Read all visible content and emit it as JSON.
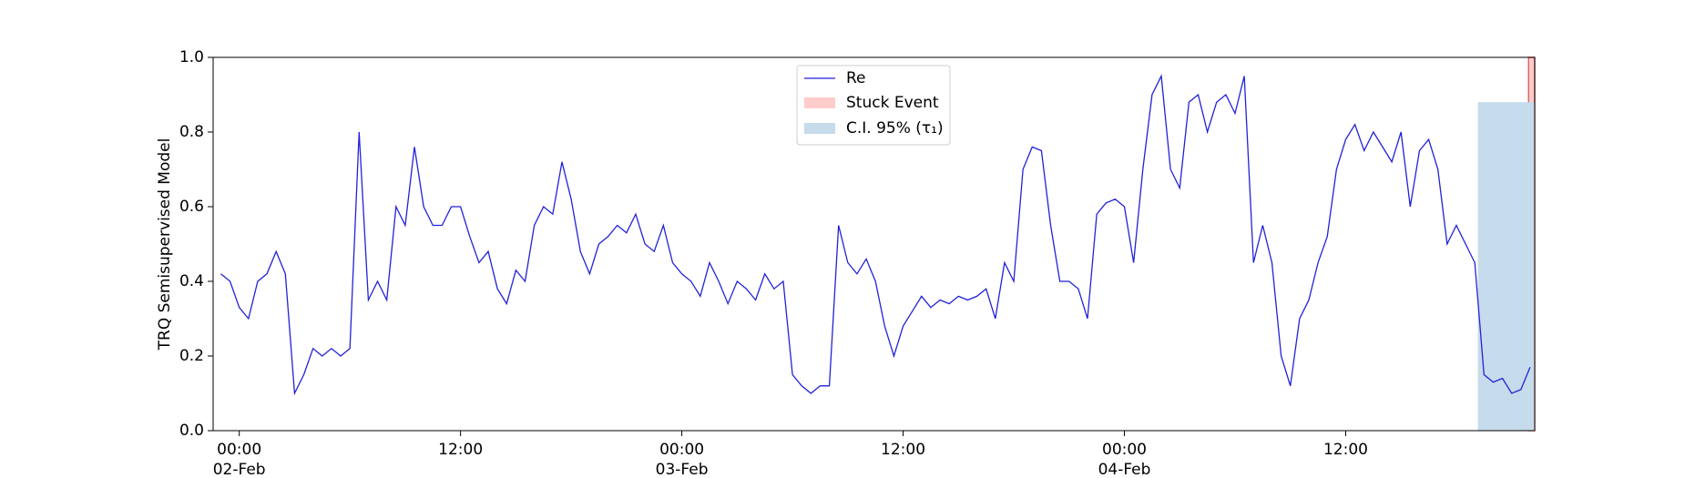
{
  "chart_data": {
    "type": "line",
    "ylabel": "TRQ Semisupervised Model",
    "x": [
      "1900-02-01T23:00",
      "1900-02-01T23:30",
      "1900-02-02T00:00",
      "1900-02-02T00:30",
      "1900-02-02T01:00",
      "1900-02-02T01:30",
      "1900-02-02T02:00",
      "1900-02-02T02:30",
      "1900-02-02T03:00",
      "1900-02-02T03:30",
      "1900-02-02T04:00",
      "1900-02-02T04:30",
      "1900-02-02T05:00",
      "1900-02-02T05:30",
      "1900-02-02T06:00",
      "1900-02-02T06:30",
      "1900-02-02T07:00",
      "1900-02-02T07:30",
      "1900-02-02T08:00",
      "1900-02-02T08:30",
      "1900-02-02T09:00",
      "1900-02-02T09:30",
      "1900-02-02T10:00",
      "1900-02-02T10:30",
      "1900-02-02T11:00",
      "1900-02-02T11:30",
      "1900-02-02T12:00",
      "1900-02-02T12:30",
      "1900-02-02T13:00",
      "1900-02-02T13:30",
      "1900-02-02T14:00",
      "1900-02-02T14:30",
      "1900-02-02T15:00",
      "1900-02-02T15:30",
      "1900-02-02T16:00",
      "1900-02-02T16:30",
      "1900-02-02T17:00",
      "1900-02-02T17:30",
      "1900-02-02T18:00",
      "1900-02-02T18:30",
      "1900-02-02T19:00",
      "1900-02-02T19:30",
      "1900-02-02T20:00",
      "1900-02-02T20:30",
      "1900-02-02T21:00",
      "1900-02-02T21:30",
      "1900-02-02T22:00",
      "1900-02-02T22:30",
      "1900-02-02T23:00",
      "1900-02-02T23:30",
      "1900-02-03T00:00",
      "1900-02-03T00:30",
      "1900-02-03T01:00",
      "1900-02-03T01:30",
      "1900-02-03T02:00",
      "1900-02-03T02:30",
      "1900-02-03T03:00",
      "1900-02-03T03:30",
      "1900-02-03T04:00",
      "1900-02-03T04:30",
      "1900-02-03T05:00",
      "1900-02-03T05:30",
      "1900-02-03T06:00",
      "1900-02-03T06:30",
      "1900-02-03T07:00",
      "1900-02-03T07:30",
      "1900-02-03T08:00",
      "1900-02-03T08:30",
      "1900-02-03T09:00",
      "1900-02-03T09:30",
      "1900-02-03T10:00",
      "1900-02-03T10:30",
      "1900-02-03T11:00",
      "1900-02-03T11:30",
      "1900-02-03T12:00",
      "1900-02-03T12:30",
      "1900-02-03T13:00",
      "1900-02-03T13:30",
      "1900-02-03T14:00",
      "1900-02-03T14:30",
      "1900-02-03T15:00",
      "1900-02-03T15:30",
      "1900-02-03T16:00",
      "1900-02-03T16:30",
      "1900-02-03T17:00",
      "1900-02-03T17:30",
      "1900-02-03T18:00",
      "1900-02-03T18:30",
      "1900-02-03T19:00",
      "1900-02-03T19:30",
      "1900-02-03T20:00",
      "1900-02-03T20:30",
      "1900-02-03T21:00",
      "1900-02-03T21:30",
      "1900-02-03T22:00",
      "1900-02-03T22:30",
      "1900-02-03T23:00",
      "1900-02-03T23:30",
      "1900-02-04T00:00",
      "1900-02-04T00:30",
      "1900-02-04T01:00",
      "1900-02-04T01:30",
      "1900-02-04T02:00",
      "1900-02-04T02:30",
      "1900-02-04T03:00",
      "1900-02-04T03:30",
      "1900-02-04T04:00",
      "1900-02-04T04:30",
      "1900-02-04T05:00",
      "1900-02-04T05:30",
      "1900-02-04T06:00",
      "1900-02-04T06:30",
      "1900-02-04T07:00",
      "1900-02-04T07:30",
      "1900-02-04T08:00",
      "1900-02-04T08:30",
      "1900-02-04T09:00",
      "1900-02-04T09:30",
      "1900-02-04T10:00",
      "1900-02-04T10:30",
      "1900-02-04T11:00",
      "1900-02-04T11:30",
      "1900-02-04T12:00",
      "1900-02-04T12:30",
      "1900-02-04T13:00",
      "1900-02-04T13:30",
      "1900-02-04T14:00",
      "1900-02-04T14:30",
      "1900-02-04T15:00",
      "1900-02-04T15:30",
      "1900-02-04T16:00",
      "1900-02-04T16:30",
      "1900-02-04T17:00",
      "1900-02-04T17:30",
      "1900-02-04T18:00",
      "1900-02-04T18:30",
      "1900-02-04T19:00",
      "1900-02-04T19:30",
      "1900-02-04T20:00",
      "1900-02-04T20:30",
      "1900-02-04T21:00",
      "1900-02-04T21:30",
      "1900-02-04T22:00"
    ],
    "series": [
      {
        "name": "Re",
        "color": "#2222d8",
        "values": [
          0.42,
          0.4,
          0.33,
          0.3,
          0.4,
          0.42,
          0.48,
          0.42,
          0.1,
          0.15,
          0.22,
          0.2,
          0.22,
          0.2,
          0.22,
          0.8,
          0.35,
          0.4,
          0.35,
          0.6,
          0.55,
          0.76,
          0.6,
          0.55,
          0.55,
          0.6,
          0.6,
          0.52,
          0.45,
          0.48,
          0.38,
          0.34,
          0.43,
          0.4,
          0.55,
          0.6,
          0.58,
          0.72,
          0.62,
          0.48,
          0.42,
          0.5,
          0.52,
          0.55,
          0.53,
          0.58,
          0.5,
          0.48,
          0.55,
          0.45,
          0.42,
          0.4,
          0.36,
          0.45,
          0.4,
          0.34,
          0.4,
          0.38,
          0.35,
          0.42,
          0.38,
          0.4,
          0.15,
          0.12,
          0.1,
          0.12,
          0.12,
          0.55,
          0.45,
          0.42,
          0.46,
          0.4,
          0.28,
          0.2,
          0.28,
          0.32,
          0.36,
          0.33,
          0.35,
          0.34,
          0.36,
          0.35,
          0.36,
          0.38,
          0.3,
          0.45,
          0.4,
          0.7,
          0.76,
          0.75,
          0.55,
          0.4,
          0.4,
          0.38,
          0.3,
          0.58,
          0.61,
          0.62,
          0.6,
          0.45,
          0.7,
          0.9,
          0.95,
          0.7,
          0.65,
          0.88,
          0.9,
          0.8,
          0.88,
          0.9,
          0.85,
          0.95,
          0.45,
          0.55,
          0.45,
          0.2,
          0.12,
          0.3,
          0.35,
          0.45,
          0.52,
          0.7,
          0.78,
          0.82,
          0.75,
          0.8,
          0.76,
          0.72,
          0.8,
          0.6,
          0.75,
          0.78,
          0.7,
          0.5,
          0.55,
          0.5,
          0.45,
          0.15,
          0.13,
          0.14,
          0.1,
          0.11,
          0.17
        ]
      }
    ],
    "regions": [
      {
        "name": "Stuck Event",
        "color": "#ffcccc",
        "edge": "#e06666",
        "x": [
          "1900-02-04T21:55",
          "1900-02-04T22:15"
        ]
      },
      {
        "name": "C.I. 95% (τ₁)",
        "color": "#c6dbeb",
        "x": [
          "1900-02-04T19:10",
          "1900-02-04T22:15"
        ],
        "y": [
          0,
          0.88
        ]
      }
    ],
    "xlim": [
      "1900-02-01T22:35",
      "1900-02-04T22:15"
    ],
    "xticks": [
      {
        "value": "1900-02-02T00:00",
        "label": "00:00\n02-Feb\n1900"
      },
      {
        "value": "1900-02-02T12:00",
        "label": "12:00"
      },
      {
        "value": "1900-02-03T00:00",
        "label": "00:00\n03-Feb"
      },
      {
        "value": "1900-02-03T12:00",
        "label": "12:00"
      },
      {
        "value": "1900-02-04T00:00",
        "label": "00:00\n04-Feb"
      },
      {
        "value": "1900-02-04T12:00",
        "label": "12:00"
      }
    ],
    "ylim": [
      0,
      1
    ],
    "yticks": [
      {
        "value": 0,
        "label": "0.0"
      },
      0.2,
      0.4,
      0.6,
      0.8,
      {
        "value": 1,
        "label": "1.0"
      }
    ],
    "grid": false,
    "legend": "upper center"
  }
}
